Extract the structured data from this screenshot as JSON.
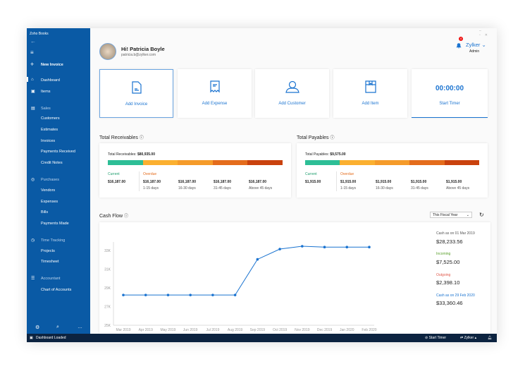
{
  "app": {
    "title": "Zoho Books",
    "status": "Dashboard Loaded"
  },
  "sidebar": {
    "new_invoice": "New Invoice",
    "items": [
      {
        "label": "Dashboard",
        "icon": "home-icon"
      },
      {
        "label": "Items",
        "icon": "box-icon"
      },
      {
        "label": "Sales",
        "icon": "document-icon"
      },
      {
        "label": "Customers"
      },
      {
        "label": "Estimates"
      },
      {
        "label": "Invoices"
      },
      {
        "label": "Payments Received"
      },
      {
        "label": "Credit Notes"
      },
      {
        "label": "Purchases",
        "icon": "cart-icon"
      },
      {
        "label": "Vendors"
      },
      {
        "label": "Expenses"
      },
      {
        "label": "Bills"
      },
      {
        "label": "Payments Made"
      },
      {
        "label": "Time Tracking",
        "icon": "clock-icon"
      },
      {
        "label": "Projects"
      },
      {
        "label": "Timesheet"
      },
      {
        "label": "Accountant",
        "icon": "list-icon"
      },
      {
        "label": "Chart of Accounts"
      }
    ]
  },
  "header": {
    "greeting": "Hi! Patricia Boyle",
    "email": "patricia.b@zylker.com",
    "org": "Zylker",
    "role": "Admin",
    "notif_count": "4"
  },
  "quick": [
    "Add Invoice",
    "Add Expense",
    "Add Customer",
    "Add Item"
  ],
  "timer": {
    "time": "00:00:00",
    "label": "Start Timer"
  },
  "receivables": {
    "title": "Total Receivables",
    "total_label": "Total Receivables",
    "total": "$80,935.00",
    "current_label": "Current",
    "overdue_label": "Overdue",
    "current": "$16,187.00",
    "buckets": [
      {
        "v": "$16,187.00",
        "d": "1-15 days"
      },
      {
        "v": "$16,187.00",
        "d": "16-30 days"
      },
      {
        "v": "$16,187.00",
        "d": "31-45 days"
      },
      {
        "v": "$16,187.00",
        "d": "Above 45 days"
      }
    ]
  },
  "payables": {
    "title": "Total Payables",
    "total_label": "Total Payables",
    "total": "$9,575.00",
    "current_label": "Current",
    "overdue_label": "Overdue",
    "current": "$1,915.00",
    "buckets": [
      {
        "v": "$1,915.00",
        "d": "1-15 days"
      },
      {
        "v": "$1,915.00",
        "d": "16-30 days"
      },
      {
        "v": "$1,915.00",
        "d": "31-45 days"
      },
      {
        "v": "$1,915.00",
        "d": "Above 45 days"
      }
    ]
  },
  "bar_colors": [
    "#2dbe96",
    "#fbb030",
    "#f59b2a",
    "#e46c1c",
    "#c9420e"
  ],
  "cashflow": {
    "title": "Cash Flow",
    "period": "This Fiscal Year",
    "open_label": "Cash as on 01 Mar 2019",
    "open": "$28,233.56",
    "in_label": "Incoming",
    "in": "$7,525.00",
    "out_label": "Outgoing",
    "out": "$2,398.10",
    "close_label": "Cash as on 29 Feb 2020",
    "close": "$33,360.46"
  },
  "statusbar": {
    "timer": "Start Timer",
    "org": "Zylker"
  },
  "chart_data": {
    "type": "line",
    "categories": [
      "Mar 2019",
      "Apr 2019",
      "May 2019",
      "Jun 2019",
      "Jul 2019",
      "Aug 2019",
      "Sep 2019",
      "Oct 2019",
      "Nov 2019",
      "Dec 2019",
      "Jan 2020",
      "Feb 2020"
    ],
    "values": [
      28233,
      28233,
      28233,
      28233,
      28233,
      28233,
      32050,
      33150,
      33450,
      33360,
      33360,
      33360
    ],
    "yticks": [
      "25K",
      "27K",
      "29K",
      "31K",
      "33K"
    ],
    "ylim": [
      25000,
      33000
    ],
    "color": "#1a73d0"
  }
}
